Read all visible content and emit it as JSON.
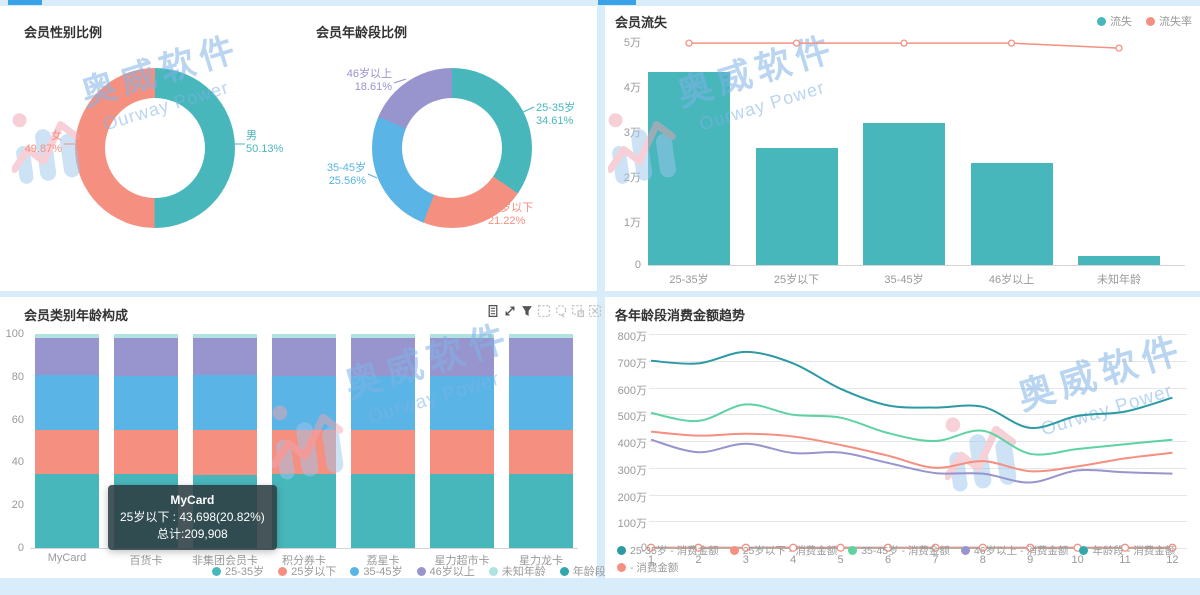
{
  "watermark": {
    "text": "奥威软件",
    "subtext": "Ourway Power"
  },
  "colors": {
    "teal": "#48b7bc",
    "salmon": "#f59081",
    "blue": "#5ab4e5",
    "purple": "#9794ce",
    "pale_teal": "#aee3df",
    "dark_teal": "#2b9aa3",
    "mint": "#5ed3a2",
    "page_bg": "#d9ecf9",
    "axis_text": "#999999",
    "title_text": "#333333"
  },
  "panels": {
    "gender": {
      "title": "会员性别比例"
    },
    "age_ratio": {
      "title": "会员年龄段比例"
    },
    "churn": {
      "title": "会员流失"
    },
    "category_age": {
      "title": "会员类别年龄构成"
    },
    "spend_trend": {
      "title": "各年龄段消费金额趋势"
    }
  },
  "toolbar_icons": [
    "data-view",
    "restore",
    "filter",
    "rect-select",
    "lasso-select",
    "keep-selection",
    "clear-selection"
  ],
  "chart_data": [
    {
      "id": "gender_pie",
      "type": "pie",
      "title": "会员性别比例",
      "donut": true,
      "unit": "%",
      "labels": [
        "男",
        "女"
      ],
      "values": [
        50.13,
        49.87
      ],
      "colors": [
        "#48b7bc",
        "#f59081"
      ]
    },
    {
      "id": "age_pie",
      "type": "pie",
      "title": "会员年龄段比例",
      "donut": true,
      "unit": "%",
      "labels": [
        "25-35岁",
        "25岁以下",
        "35-45岁",
        "46岁以上"
      ],
      "values": [
        34.61,
        21.22,
        25.56,
        18.61
      ],
      "colors": [
        "#48b7bc",
        "#f59081",
        "#5ab4e5",
        "#9794ce"
      ]
    },
    {
      "id": "churn",
      "type": "bar",
      "title": "会员流失",
      "categories": [
        "25-35岁",
        "25岁以下",
        "35-45岁",
        "46岁以上",
        "未知年龄"
      ],
      "series": [
        {
          "name": "流失",
          "type": "bar",
          "color": "#48b7bc",
          "values_wan": [
            4.28,
            2.6,
            3.15,
            2.27,
            0.2
          ]
        },
        {
          "name": "流失率",
          "type": "line",
          "color": "#f59081",
          "values_wan": [
            4.93,
            4.93,
            4.93,
            4.93,
            4.82
          ]
        }
      ],
      "y_ticks": [
        "5万",
        "4万",
        "3万",
        "2万",
        "1万",
        "0"
      ],
      "y_max_wan": 5,
      "legend_position": "top-right",
      "grid": false
    },
    {
      "id": "category_age",
      "type": "bar",
      "stacked": true,
      "title": "会员类别年龄构成",
      "categories": [
        "MyCard",
        "百货卡",
        "非集团会员卡",
        "积分券卡",
        "荔星卡",
        "星力超市卡",
        "星力龙卡"
      ],
      "series": [
        {
          "name": "25-35岁",
          "color": "#48b7bc",
          "values": [
            34.4,
            34.6,
            34.3,
            34.5,
            34.4,
            34.6,
            34.7
          ]
        },
        {
          "name": "25岁以下",
          "color": "#f59081",
          "values": [
            20.82,
            20.7,
            20.9,
            20.6,
            20.8,
            20.7,
            20.6
          ]
        },
        {
          "name": "35-45岁",
          "color": "#5ab4e5",
          "values": [
            25.4,
            25.2,
            25.5,
            25.4,
            25.3,
            25.2,
            25.3
          ]
        },
        {
          "name": "46岁以上",
          "color": "#9794ce",
          "values": [
            17.6,
            17.7,
            17.5,
            17.7,
            17.6,
            17.7,
            17.6
          ]
        },
        {
          "name": "未知年龄",
          "color": "#aee3df",
          "values": [
            1.78,
            1.8,
            1.8,
            1.8,
            1.9,
            1.8,
            1.8
          ]
        }
      ],
      "extra_legend": {
        "name": "年龄段",
        "color": "#2fa7ad"
      },
      "y_ticks": [
        "100",
        "80",
        "60",
        "40",
        "20",
        "0"
      ],
      "y_max": 100,
      "tooltip": {
        "name": "MyCard",
        "value_line": "25岁以下 : 43,698(20.82%)",
        "total_line": "总计:209,908"
      },
      "legend_position": "bottom",
      "grid": false
    },
    {
      "id": "spend_trend",
      "type": "line",
      "title": "各年龄段消费金额趋势",
      "x": [
        "1",
        "2",
        "3",
        "4",
        "5",
        "6",
        "7",
        "8",
        "9",
        "10",
        "11",
        "12"
      ],
      "series": [
        {
          "name": "25-35岁 - 消费金额",
          "color": "#2b9aa3",
          "smooth": true,
          "values_wan": [
            700,
            690,
            733,
            690,
            595,
            533,
            525,
            528,
            449,
            494,
            510,
            562
          ]
        },
        {
          "name": "25岁以下 - 消费金额",
          "color": "#f59081",
          "smooth": true,
          "values_wan": [
            435,
            420,
            427,
            417,
            385,
            345,
            300,
            325,
            287,
            305,
            335,
            356
          ]
        },
        {
          "name": "35-45岁 - 消费金额",
          "color": "#5ed3a2",
          "smooth": true,
          "values_wan": [
            505,
            475,
            537,
            498,
            487,
            430,
            400,
            438,
            352,
            370,
            388,
            405
          ]
        },
        {
          "name": "46岁以上 - 消费金额",
          "color": "#9794ce",
          "smooth": true,
          "values_wan": [
            405,
            358,
            390,
            355,
            357,
            318,
            280,
            278,
            245,
            290,
            283,
            278
          ]
        },
        {
          "name": "年龄段 - 消费金额",
          "color": "#2fa7ad",
          "smooth": true,
          "values_wan": [
            1,
            1,
            1,
            1,
            1,
            1,
            1,
            1,
            1,
            1,
            1,
            1
          ]
        },
        {
          "name": "- 消费金额",
          "color": "#f59081",
          "smooth": false,
          "markers": true,
          "values_wan": [
            1,
            1,
            1,
            1,
            1,
            1,
            1,
            1,
            1,
            1,
            1,
            1
          ]
        }
      ],
      "y_ticks": [
        "800万",
        "700万",
        "600万",
        "500万",
        "400万",
        "300万",
        "200万",
        "100万",
        "0"
      ],
      "y_max_wan": 800,
      "grid": true,
      "legend_position": "bottom"
    }
  ]
}
